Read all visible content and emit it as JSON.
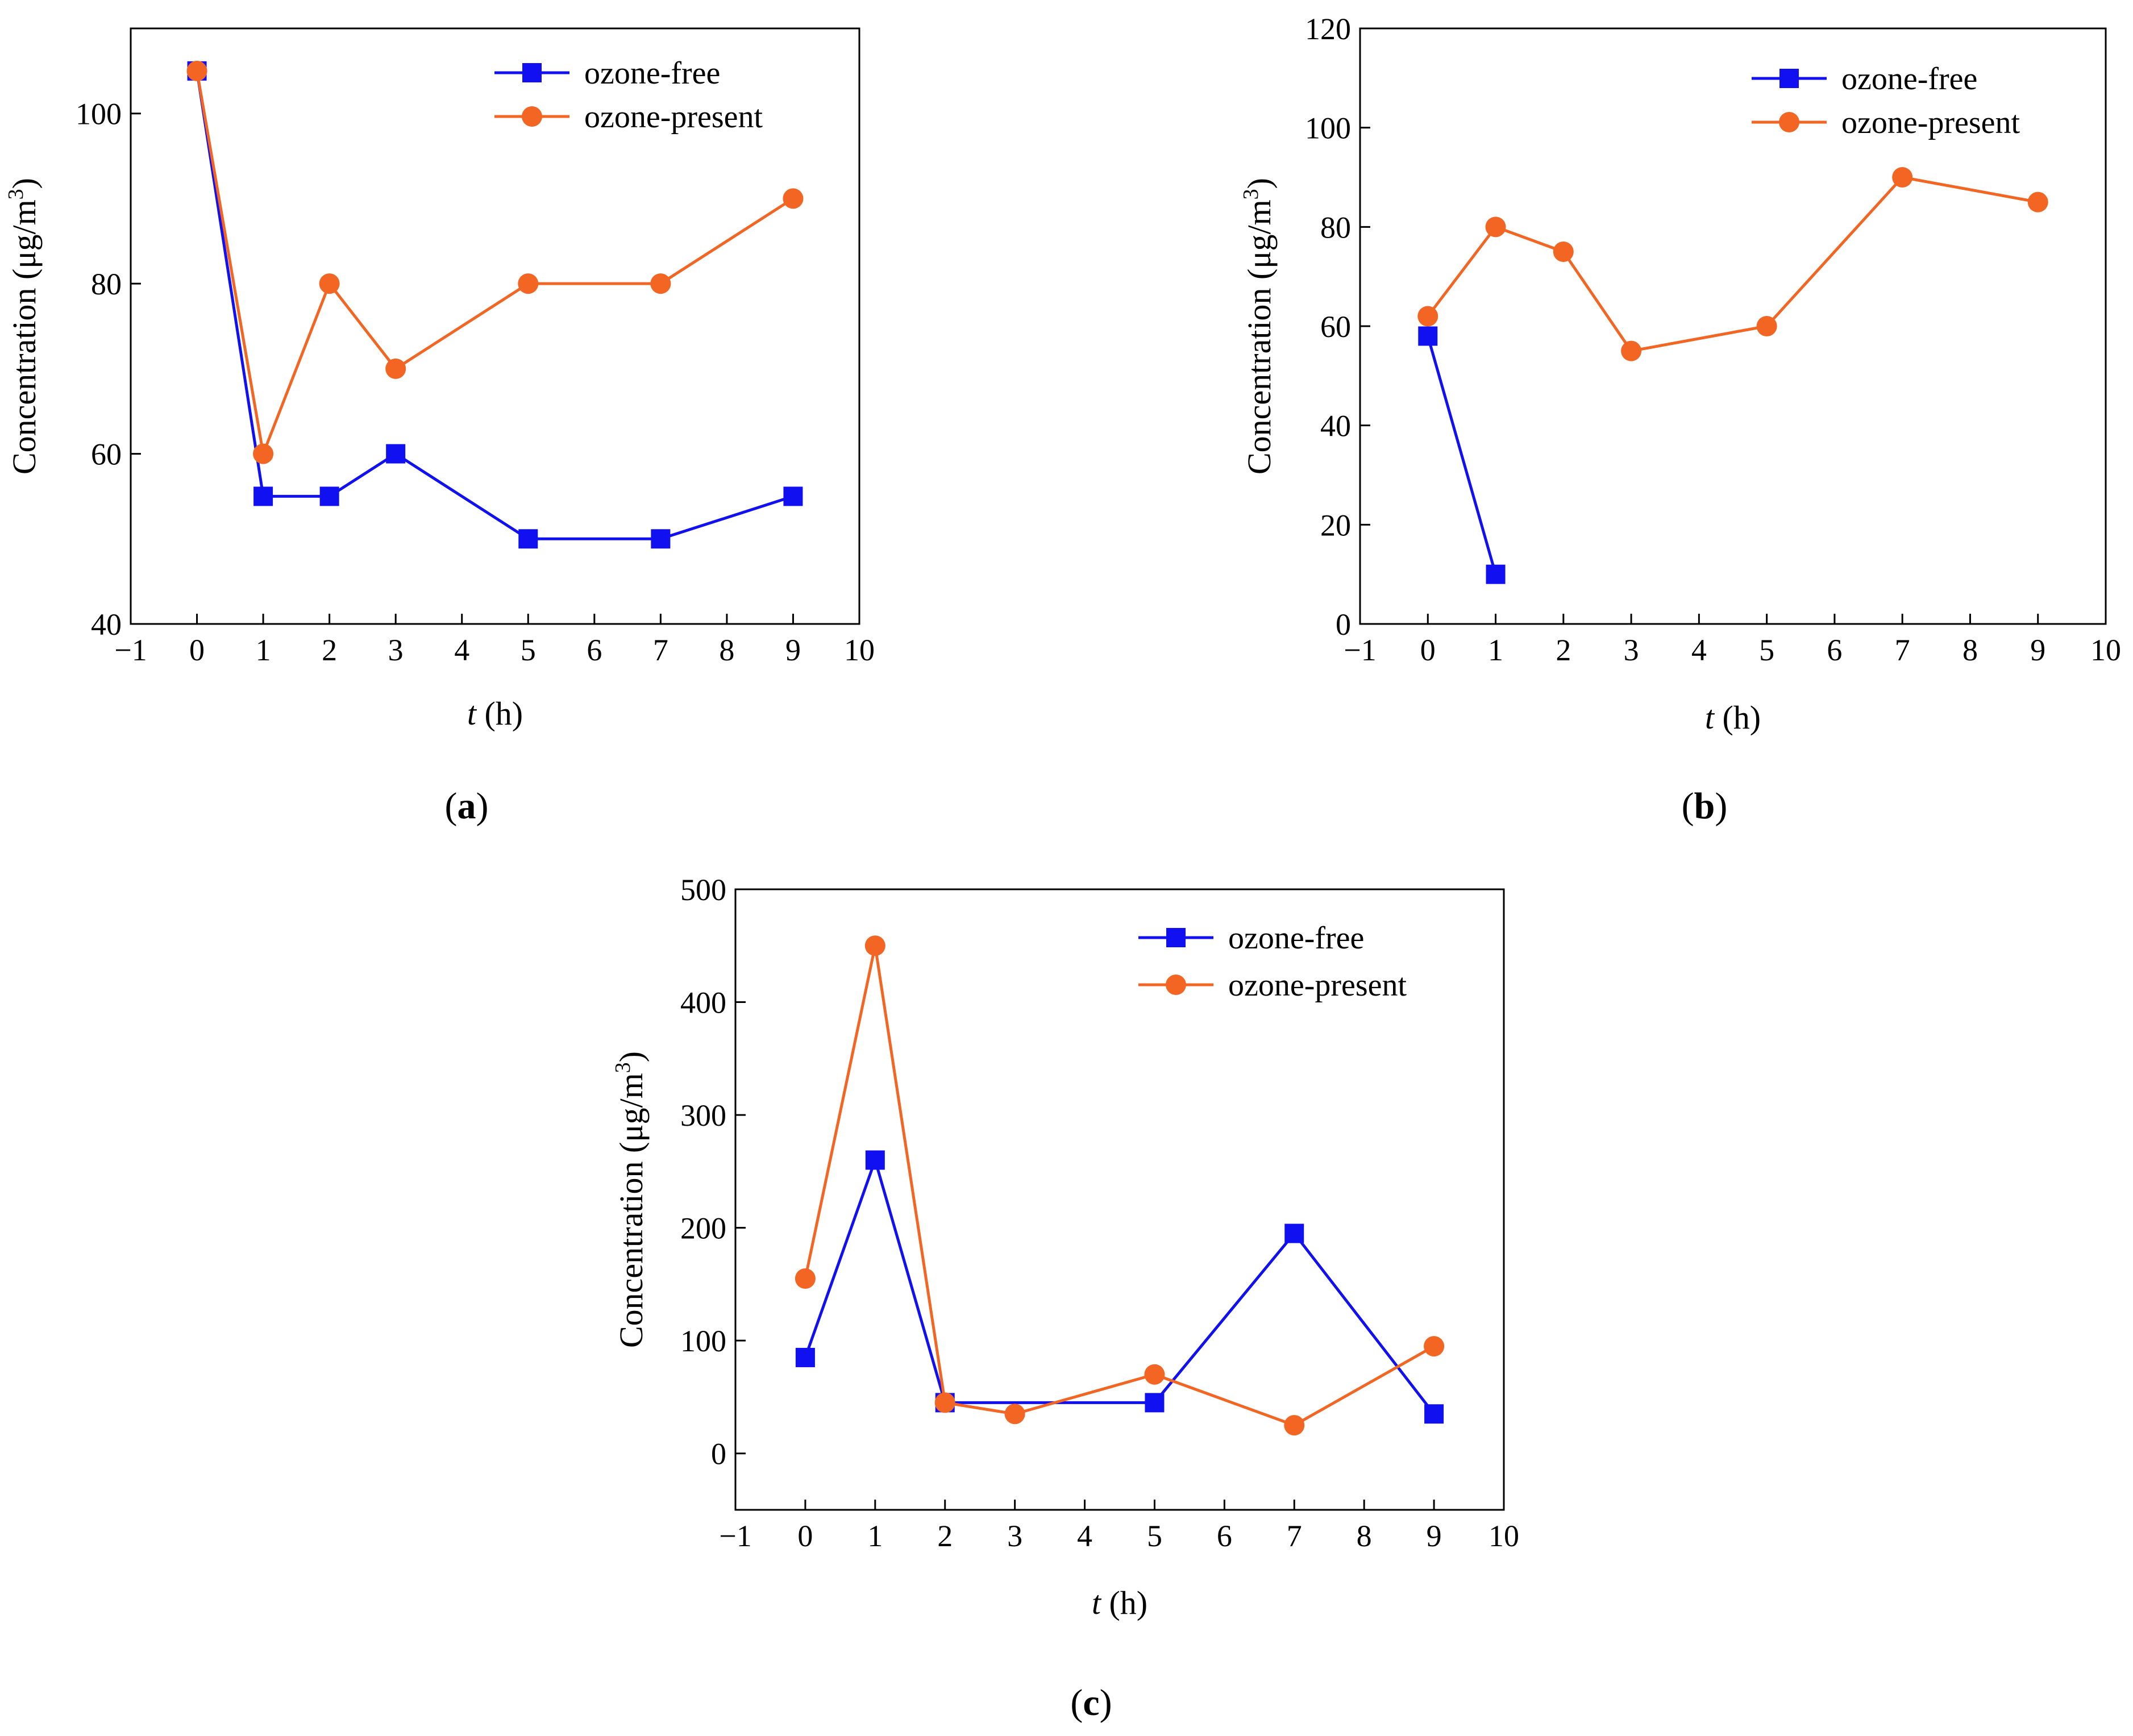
{
  "chart_data": [
    {
      "type": "line",
      "panel_label": "a",
      "xlabel": "t",
      "xlabel_unit": "(h)",
      "ylabel": "Concentration (μg/m",
      "ylabel_sup": "3",
      "ylabel_close": ")",
      "xlim": [
        -1,
        10
      ],
      "ylim": [
        40,
        110
      ],
      "xticks": [
        -1,
        0,
        1,
        2,
        3,
        4,
        5,
        6,
        7,
        8,
        9,
        10
      ],
      "xtick_labels": [
        "−1",
        "0",
        "1",
        "2",
        "3",
        "4",
        "5",
        "6",
        "7",
        "8",
        "9",
        "10"
      ],
      "yticks": [
        40,
        60,
        80,
        100
      ],
      "ytick_labels": [
        "40",
        "60",
        "80",
        "100"
      ],
      "legend_position": "top-right",
      "x": [
        0,
        1,
        2,
        3,
        5,
        7,
        9
      ],
      "series": [
        {
          "name": "ozone-free",
          "marker": "square",
          "color": "#1010f0",
          "x": [
            0,
            1,
            2,
            3,
            5,
            7,
            9
          ],
          "values": [
            105,
            55,
            55,
            60,
            50,
            50,
            55
          ]
        },
        {
          "name": "ozone-present",
          "marker": "circle",
          "color": "#f26522",
          "x": [
            0,
            1,
            2,
            3,
            5,
            7,
            9
          ],
          "values": [
            105,
            60,
            80,
            70,
            80,
            80,
            90
          ]
        }
      ]
    },
    {
      "type": "line",
      "panel_label": "b",
      "xlabel": "t",
      "xlabel_unit": "(h)",
      "ylabel": "Concentration (μg/m",
      "ylabel_sup": "3",
      "ylabel_close": ")",
      "xlim": [
        -1,
        10
      ],
      "ylim": [
        0,
        120
      ],
      "xticks": [
        -1,
        0,
        1,
        2,
        3,
        4,
        5,
        6,
        7,
        8,
        9,
        10
      ],
      "xtick_labels": [
        "−1",
        "0",
        "1",
        "2",
        "3",
        "4",
        "5",
        "6",
        "7",
        "8",
        "9",
        "10"
      ],
      "yticks": [
        0,
        20,
        40,
        60,
        80,
        100,
        120
      ],
      "ytick_labels": [
        "0",
        "20",
        "40",
        "60",
        "80",
        "100",
        "120"
      ],
      "legend_position": "top-right",
      "series": [
        {
          "name": "ozone-free",
          "marker": "square",
          "color": "#1010f0",
          "x": [
            0,
            1
          ],
          "values": [
            58,
            10
          ]
        },
        {
          "name": "ozone-present",
          "marker": "circle",
          "color": "#f26522",
          "x": [
            0,
            1,
            2,
            3,
            5,
            7,
            9
          ],
          "values": [
            62,
            80,
            75,
            55,
            60,
            90,
            85
          ]
        }
      ]
    },
    {
      "type": "line",
      "panel_label": "c",
      "xlabel": "t",
      "xlabel_unit": "(h)",
      "ylabel": "Concentration (μg/m",
      "ylabel_sup": "3",
      "ylabel_close": ")",
      "xlim": [
        -1,
        10
      ],
      "ylim": [
        -50,
        500
      ],
      "xticks": [
        -1,
        0,
        1,
        2,
        3,
        4,
        5,
        6,
        7,
        8,
        9,
        10
      ],
      "xtick_labels": [
        "−1",
        "0",
        "1",
        "2",
        "3",
        "4",
        "5",
        "6",
        "7",
        "8",
        "9",
        "10"
      ],
      "yticks": [
        0,
        100,
        200,
        300,
        400,
        500
      ],
      "ytick_labels": [
        "0",
        "100",
        "200",
        "300",
        "400",
        "500"
      ],
      "legend_position": "top-right",
      "series": [
        {
          "name": "ozone-free",
          "marker": "square",
          "color": "#1010f0",
          "x": [
            0,
            1,
            2,
            5,
            7,
            9
          ],
          "values": [
            85,
            260,
            45,
            45,
            195,
            35
          ]
        },
        {
          "name": "ozone-present",
          "marker": "circle",
          "color": "#f26522",
          "x": [
            0,
            1,
            2,
            3,
            5,
            7,
            9
          ],
          "values": [
            155,
            450,
            45,
            35,
            70,
            25,
            95
          ]
        }
      ]
    }
  ]
}
